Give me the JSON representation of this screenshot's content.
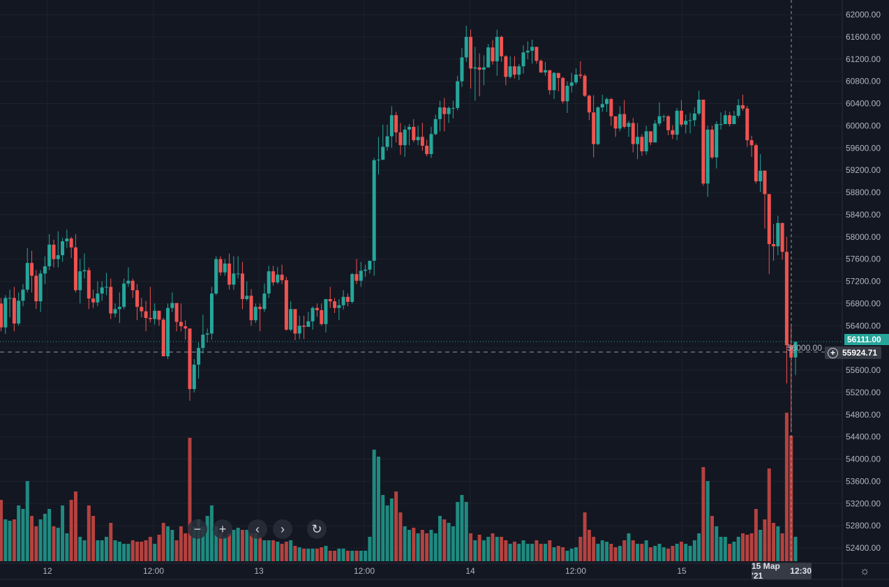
{
  "chart_data": {
    "type": "candlestick",
    "interval": "30m",
    "price_axis": {
      "min": 52400,
      "max": 62000,
      "step": 400,
      "ticks": [
        "62000.00",
        "61600.00",
        "61200.00",
        "60800.00",
        "60400.00",
        "60000.00",
        "59600.00",
        "59200.00",
        "58800.00",
        "58400.00",
        "58000.00",
        "57600.00",
        "57200.00",
        "56800.00",
        "56400.00",
        "56000.00",
        "55600.00",
        "55200.00",
        "54800.00",
        "54400.00",
        "54000.00",
        "53600.00",
        "53200.00",
        "52800.00",
        "52400.00"
      ]
    },
    "time_ticks": [
      "12",
      "12:00",
      "13",
      "12:00",
      "14",
      "12:00",
      "15"
    ],
    "grid": true,
    "colors": {
      "up": "#26a69a",
      "down": "#ef5350",
      "volume_up": "#1f8a80",
      "volume_down": "#b5423f",
      "background": "#131722"
    },
    "first_open": 56800,
    "close": [
      56370,
      56900,
      56900,
      56440,
      56850,
      57050,
      57530,
      57300,
      56840,
      57340,
      57470,
      57860,
      57600,
      57670,
      57920,
      57970,
      57810,
      57040,
      57380,
      57400,
      56890,
      56820,
      56980,
      57090,
      57100,
      56620,
      56700,
      56740,
      57160,
      57210,
      57040,
      56740,
      56660,
      56540,
      56520,
      56670,
      56510,
      55850,
      56720,
      56810,
      56470,
      56390,
      56350,
      55260,
      55700,
      56000,
      56240,
      56260,
      56980,
      57600,
      57360,
      57520,
      57140,
      57340,
      57340,
      56880,
      56940,
      56500,
      56740,
      56700,
      56980,
      57380,
      57180,
      57320,
      57220,
      56330,
      56700,
      56260,
      56400,
      56380,
      56480,
      56720,
      56680,
      56430,
      56880,
      56840,
      56720,
      56770,
      56920,
      56830,
      57330,
      57210,
      57390,
      57410,
      57570,
      59380,
      59390,
      59620,
      59810,
      60190,
      59880,
      59650,
      59930,
      59980,
      59740,
      59800,
      59640,
      59490,
      59850,
      60120,
      60330,
      60210,
      60320,
      60320,
      60800,
      61230,
      61600,
      61030,
      61050,
      61010,
      61050,
      61410,
      61160,
      61600,
      61250,
      60880,
      61070,
      60920,
      61070,
      61320,
      61350,
      61420,
      61170,
      60960,
      61000,
      60640,
      60950,
      60860,
      60440,
      60720,
      60780,
      60920,
      60900,
      60540,
      60240,
      59670,
      60330,
      60390,
      60480,
      60170,
      59950,
      60210,
      59980,
      60050,
      59670,
      59800,
      59540,
      59900,
      59700,
      60040,
      60170,
      60170,
      59920,
      59840,
      60270,
      60020,
      60090,
      60100,
      60220,
      60470,
      58960,
      59930,
      59430,
      60030,
      60030,
      60190,
      60030,
      60180,
      60370,
      60310,
      59740,
      59650,
      59000,
      59190,
      58770,
      57870,
      57830,
      58250,
      57730,
      56050,
      55830,
      56111
    ],
    "high": [
      56900,
      56950,
      57050,
      57100,
      57000,
      57150,
      57800,
      57750,
      57400,
      57400,
      57650,
      58050,
      57950,
      58100,
      57980,
      58130,
      58000,
      58050,
      57600,
      57700,
      57450,
      57050,
      57200,
      57200,
      57350,
      57250,
      56800,
      57000,
      57250,
      57450,
      57250,
      57150,
      56900,
      56850,
      57100,
      56800,
      56670,
      56540,
      56800,
      57000,
      56800,
      56800,
      56500,
      56350,
      55800,
      56100,
      56600,
      56350,
      57100,
      57650,
      57650,
      57600,
      57700,
      57650,
      57650,
      57550,
      57200,
      57060,
      56800,
      56800,
      57160,
      57480,
      57480,
      57460,
      57500,
      57280,
      56840,
      56700,
      56580,
      56580,
      56650,
      56750,
      56800,
      56800,
      56880,
      57100,
      56900,
      56880,
      57040,
      56980,
      57350,
      57600,
      57550,
      57500,
      57570,
      59420,
      59800,
      60020,
      60020,
      60350,
      60250,
      60050,
      60000,
      60030,
      60120,
      60000,
      60050,
      59750,
      59980,
      60200,
      60450,
      60500,
      60350,
      60450,
      60900,
      61400,
      61800,
      61730,
      61420,
      61300,
      61270,
      61470,
      61540,
      61730,
      61620,
      61270,
      61250,
      61250,
      61110,
      61450,
      61520,
      61550,
      61420,
      61190,
      61150,
      61000,
      60970,
      60950,
      60880,
      60800,
      60950,
      61030,
      61160,
      60930,
      60560,
      60550,
      60350,
      60560,
      60510,
      60500,
      60170,
      60350,
      60460,
      60090,
      60140,
      60050,
      59850,
      60000,
      59900,
      60100,
      60420,
      60200,
      60190,
      60010,
      60320,
      60460,
      60200,
      60230,
      60330,
      60630,
      60470,
      60000,
      60000,
      60080,
      60240,
      60270,
      60250,
      60270,
      60480,
      60560,
      60360,
      59820,
      59680,
      59490,
      59200,
      58770,
      58230,
      58380,
      58250,
      58000,
      56400,
      56111
    ],
    "low": [
      56300,
      56250,
      56550,
      56300,
      56400,
      56750,
      57000,
      57000,
      56700,
      56650,
      57150,
      57400,
      57450,
      57450,
      57550,
      57800,
      57620,
      57000,
      56800,
      57250,
      56700,
      56720,
      56750,
      56850,
      56950,
      56520,
      56550,
      56450,
      56700,
      57100,
      56900,
      56500,
      56550,
      56300,
      56460,
      56420,
      56400,
      55850,
      55800,
      56650,
      56300,
      56300,
      56150,
      55050,
      55200,
      55450,
      55900,
      56100,
      56150,
      56950,
      57300,
      57300,
      57050,
      57050,
      57250,
      56700,
      56850,
      56400,
      56450,
      56300,
      56650,
      56900,
      57120,
      57150,
      57150,
      56310,
      56300,
      56140,
      56160,
      56160,
      56380,
      56330,
      56560,
      56400,
      56280,
      56720,
      56630,
      56500,
      56690,
      56750,
      56800,
      57150,
      57100,
      57280,
      57340,
      57300,
      59120,
      59380,
      59550,
      59600,
      59700,
      59480,
      59440,
      59650,
      59700,
      59650,
      59550,
      59450,
      59420,
      59830,
      59900,
      59900,
      60050,
      60130,
      60280,
      60700,
      61150,
      60670,
      60450,
      60530,
      60730,
      61050,
      61100,
      60900,
      61150,
      60730,
      60850,
      60850,
      60820,
      60940,
      61200,
      61120,
      61120,
      60950,
      60900,
      60560,
      60480,
      60620,
      60400,
      60230,
      60600,
      60740,
      60850,
      60520,
      60100,
      59430,
      59650,
      60250,
      60250,
      60000,
      59800,
      59900,
      59950,
      59800,
      59520,
      59400,
      59460,
      59480,
      59650,
      59700,
      60000,
      60080,
      59830,
      59760,
      59740,
      59980,
      59860,
      59860,
      59990,
      60190,
      58920,
      58720,
      59400,
      59230,
      59930,
      60030,
      59990,
      60030,
      60140,
      60270,
      59620,
      59440,
      58960,
      58810,
      58150,
      57330,
      57570,
      57670,
      57590,
      55360,
      54500,
      55510
    ],
    "volume": [
      88,
      60,
      58,
      60,
      80,
      75,
      115,
      65,
      50,
      60,
      68,
      75,
      50,
      48,
      80,
      40,
      88,
      100,
      35,
      30,
      80,
      65,
      30,
      30,
      35,
      55,
      30,
      28,
      25,
      25,
      30,
      28,
      28,
      30,
      35,
      25,
      38,
      55,
      50,
      45,
      30,
      50,
      40,
      177,
      50,
      60,
      50,
      65,
      80,
      50,
      40,
      35,
      40,
      45,
      48,
      45,
      45,
      40,
      40,
      35,
      30,
      30,
      30,
      28,
      25,
      28,
      30,
      22,
      20,
      18,
      18,
      18,
      18,
      20,
      22,
      15,
      15,
      18,
      18,
      15,
      15,
      15,
      15,
      15,
      35,
      160,
      150,
      95,
      80,
      90,
      100,
      70,
      50,
      45,
      48,
      40,
      45,
      40,
      45,
      40,
      65,
      60,
      55,
      50,
      85,
      95,
      85,
      40,
      30,
      38,
      30,
      35,
      40,
      35,
      35,
      30,
      25,
      28,
      25,
      30,
      25,
      25,
      30,
      25,
      25,
      30,
      20,
      22,
      20,
      15,
      18,
      20,
      35,
      70,
      45,
      35,
      25,
      30,
      28,
      25,
      20,
      22,
      30,
      40,
      30,
      25,
      25,
      30,
      20,
      22,
      25,
      20,
      18,
      22,
      25,
      28,
      25,
      22,
      30,
      40,
      135,
      115,
      65,
      50,
      35,
      35,
      25,
      28,
      35,
      40,
      38,
      40,
      75,
      45,
      60,
      133,
      55,
      50,
      40,
      213,
      180,
      35
    ],
    "last_price": "56111.00",
    "crosshair": {
      "price": "55924.71",
      "date": "15 Мар '21",
      "time": "12:30"
    }
  },
  "controls": {
    "zoom_out_icon": "minus",
    "zoom_in_icon": "plus",
    "scroll_left_icon": "chevron-left",
    "scroll_right_icon": "chevron-right",
    "reset_icon": "rotate-ccw",
    "settings_icon": "sun-gear"
  }
}
